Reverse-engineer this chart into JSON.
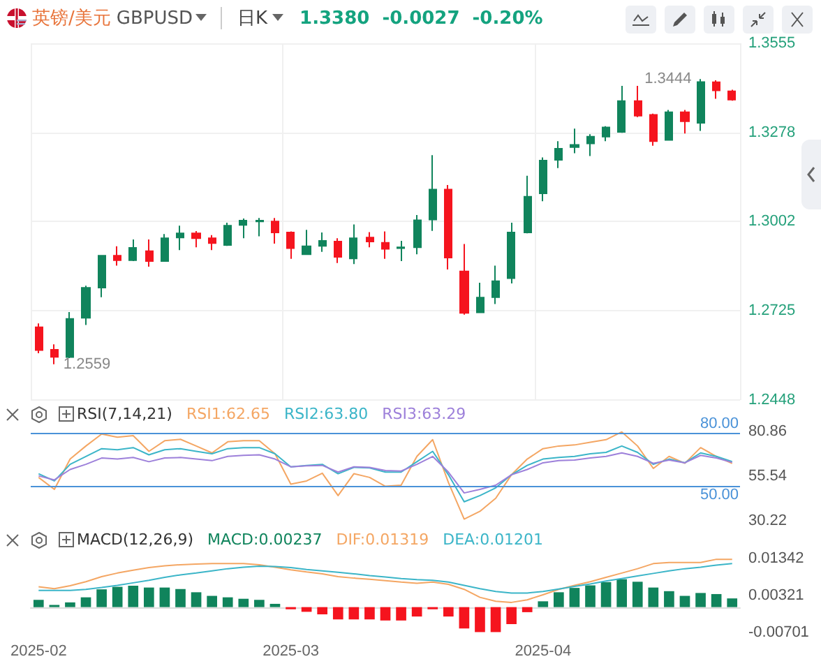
{
  "chart_data": [
    {
      "type": "candlestick",
      "title": "英镑/美元",
      "subtitle": "GBPUSD",
      "annotations": [
        "日K",
        "1.3380",
        "-0.0027",
        "-0.20%",
        "1.2559",
        "1.3444"
      ],
      "categories": [
        "2025-02",
        null,
        null,
        null,
        null,
        null,
        null,
        null,
        null,
        null,
        null,
        null,
        null,
        null,
        null,
        null,
        "2025-03",
        null,
        null,
        null,
        null,
        null,
        null,
        null,
        null,
        null,
        null,
        null,
        null,
        null,
        null,
        null,
        "2025-04",
        null,
        null,
        null,
        null,
        null,
        null,
        null,
        null,
        null,
        null,
        null,
        null
      ],
      "ohlc": [
        [
          1.2674,
          1.2686,
          1.2593,
          1.2603
        ],
        [
          1.2604,
          1.2621,
          1.2559,
          1.2582
        ],
        [
          1.2581,
          1.2721,
          1.2578,
          1.27
        ],
        [
          1.2703,
          1.2803,
          1.2681,
          1.2796
        ],
        [
          1.2797,
          1.2897,
          1.2767,
          1.2896
        ],
        [
          1.2896,
          1.2925,
          1.2865,
          1.2882
        ],
        [
          1.2882,
          1.2946,
          1.2879,
          1.292
        ],
        [
          1.291,
          1.2946,
          1.2862,
          1.2879
        ],
        [
          1.2879,
          1.2963,
          1.2877,
          1.295
        ],
        [
          1.2952,
          1.2989,
          1.2913,
          1.2965
        ],
        [
          1.2965,
          1.2972,
          1.2922,
          1.295
        ],
        [
          1.295,
          1.296,
          1.2913,
          1.2935
        ],
        [
          1.2929,
          1.2998,
          1.2926,
          1.2989
        ],
        [
          1.2991,
          1.3011,
          1.295,
          1.3005
        ],
        [
          1.3002,
          1.3013,
          1.2956,
          1.3005
        ],
        [
          1.3002,
          1.3013,
          1.2933,
          1.2968
        ],
        [
          1.2968,
          1.2971,
          1.2886,
          1.2919
        ],
        [
          1.29,
          1.2976,
          1.2898,
          1.2925
        ],
        [
          1.2926,
          1.2968,
          1.2908,
          1.2942
        ],
        [
          1.294,
          1.295,
          1.2873,
          1.2892
        ],
        [
          1.2887,
          1.2993,
          1.287,
          1.295
        ],
        [
          1.2952,
          1.2969,
          1.2922,
          1.294
        ],
        [
          1.2936,
          1.2971,
          1.2886,
          1.2917
        ],
        [
          1.2919,
          1.2942,
          1.2879,
          1.2922
        ],
        [
          1.2922,
          1.3022,
          1.29,
          1.3006
        ],
        [
          1.3008,
          1.3208,
          1.2973,
          1.3101
        ],
        [
          1.3101,
          1.3115,
          1.2853,
          1.289
        ],
        [
          1.2847,
          1.2932,
          1.2713,
          1.2718
        ],
        [
          1.272,
          1.2812,
          1.2718,
          1.2766
        ],
        [
          1.2767,
          1.2865,
          1.2746,
          1.2817
        ],
        [
          1.2826,
          1.2998,
          1.281,
          1.2968
        ],
        [
          1.2968,
          1.3144,
          1.2965,
          1.3079
        ],
        [
          1.3089,
          1.3201,
          1.3065,
          1.3191
        ],
        [
          1.3193,
          1.3251,
          1.3168,
          1.3228
        ],
        [
          1.3233,
          1.329,
          1.3214,
          1.324
        ],
        [
          1.3244,
          1.3273,
          1.3205,
          1.3265
        ],
        [
          1.3265,
          1.3298,
          1.3251,
          1.3294
        ],
        [
          1.328,
          1.3423,
          1.3277,
          1.3376
        ],
        [
          1.3376,
          1.3423,
          1.3326,
          1.333
        ],
        [
          1.3333,
          1.3337,
          1.3237,
          1.3251
        ],
        [
          1.3255,
          1.3348,
          1.3254,
          1.3341
        ],
        [
          1.3341,
          1.3348,
          1.3275,
          1.3313
        ],
        [
          1.3308,
          1.3444,
          1.3283,
          1.3435
        ],
        [
          1.3434,
          1.344,
          1.3383,
          1.3409
        ],
        [
          1.3406,
          1.3411,
          1.3377,
          1.338
        ]
      ],
      "colors": [
        "#f5141e",
        "#f5141e",
        "#10845c",
        "#10845c",
        "#10845c",
        "#f5141e",
        "#10845c",
        "#f5141e",
        "#10845c",
        "#10845c",
        "#f5141e",
        "#f5141e",
        "#10845c",
        "#10845c",
        "#10845c",
        "#f5141e",
        "#f5141e",
        "#10845c",
        "#10845c",
        "#f5141e",
        "#10845c",
        "#f5141e",
        "#f5141e",
        "#10845c",
        "#10845c",
        "#10845c",
        "#f5141e",
        "#f5141e",
        "#10845c",
        "#10845c",
        "#10845c",
        "#10845c",
        "#10845c",
        "#10845c",
        "#10845c",
        "#10845c",
        "#10845c",
        "#10845c",
        "#f5141e",
        "#f5141e",
        "#10845c",
        "#f5141e",
        "#10845c",
        "#f5141e",
        "#f5141e"
      ],
      "ylim": [
        1.2448,
        1.3555
      ],
      "yticks": [
        1.2448,
        1.2725,
        1.3002,
        1.3278,
        1.3555
      ],
      "grid": true,
      "tick_labels": "y"
    },
    {
      "type": "line",
      "title": "RSI(7,14,21)",
      "categories": [
        "2025-02",
        null,
        null,
        null,
        null,
        null,
        null,
        null,
        null,
        null,
        null,
        null,
        null,
        null,
        null,
        null,
        "2025-03",
        null,
        null,
        null,
        null,
        null,
        null,
        null,
        null,
        null,
        null,
        null,
        null,
        null,
        null,
        null,
        "2025-04",
        null,
        null,
        null,
        null,
        null,
        null,
        null,
        null,
        null,
        null,
        null,
        null
      ],
      "series": [
        {
          "name": "RSI1:62.65",
          "color": "#f4a663",
          "values": [
            54.8,
            48.0,
            65.2,
            72.6,
            79.4,
            77.6,
            78.5,
            69.6,
            75.6,
            76.4,
            72.6,
            68.7,
            75.0,
            75.6,
            75.6,
            68.2,
            51.0,
            52.8,
            57.2,
            44.5,
            56.9,
            54.8,
            49.8,
            50.4,
            66.7,
            76.2,
            51.9,
            31.2,
            35.6,
            43.0,
            56.3,
            65.2,
            71.1,
            72.6,
            73.2,
            74.7,
            76.2,
            80.6,
            72.6,
            59.9,
            66.7,
            62.8,
            71.7,
            66.7,
            62.7
          ]
        },
        {
          "name": "RSI2:63.80",
          "color": "#3bb5c8",
          "values": [
            56.9,
            52.8,
            62.2,
            66.7,
            71.1,
            70.5,
            71.7,
            67.6,
            70.5,
            71.1,
            69.6,
            68.2,
            71.1,
            71.7,
            71.7,
            68.2,
            60.8,
            61.6,
            62.2,
            56.9,
            60.5,
            60.2,
            57.8,
            57.8,
            63.7,
            69.6,
            56.3,
            41.0,
            44.5,
            48.9,
            56.3,
            61.6,
            65.2,
            66.1,
            66.7,
            68.2,
            69.0,
            72.6,
            69.0,
            62.2,
            65.2,
            63.1,
            68.7,
            66.7,
            63.8
          ]
        },
        {
          "name": "RSI3:63.29",
          "color": "#9d80da",
          "values": [
            55.7,
            53.4,
            59.3,
            62.2,
            65.8,
            65.2,
            66.1,
            63.7,
            65.8,
            66.1,
            65.2,
            64.3,
            66.7,
            67.3,
            67.6,
            65.2,
            60.8,
            61.4,
            61.6,
            57.8,
            60.8,
            60.5,
            58.7,
            58.4,
            62.2,
            66.7,
            57.8,
            46.0,
            48.0,
            50.4,
            56.3,
            59.3,
            63.1,
            64.3,
            64.6,
            65.8,
            66.7,
            68.7,
            66.7,
            62.8,
            64.6,
            63.1,
            67.3,
            65.8,
            63.3
          ]
        }
      ],
      "ylim": [
        30.22,
        80.86
      ],
      "yticks": [
        30.22,
        55.54,
        80.86
      ],
      "ref_lines": [
        {
          "axis": "y",
          "value": 80,
          "label": "80.00",
          "color": "#4a92d8"
        },
        {
          "axis": "y",
          "value": 50,
          "label": "50.00",
          "color": "#4a92d8"
        }
      ],
      "legend": "top",
      "marker": "none",
      "tick_labels": "y"
    },
    {
      "type": "bar",
      "title": "MACD(12,26,9)",
      "categories": [
        "2025-02",
        null,
        null,
        null,
        null,
        null,
        null,
        null,
        null,
        null,
        null,
        null,
        null,
        null,
        null,
        null,
        "2025-03",
        null,
        null,
        null,
        null,
        null,
        null,
        null,
        null,
        null,
        null,
        null,
        null,
        null,
        null,
        null,
        "2025-04",
        null,
        null,
        null,
        null,
        null,
        null,
        null,
        null,
        null,
        null,
        null,
        null
      ],
      "series": [
        {
          "name": "MACD:0.00237",
          "type": "bar",
          "colors": [
            "#10845c",
            "#10845c",
            "#10845c",
            "#10845c",
            "#10845c",
            "#10845c",
            "#10845c",
            "#10845c",
            "#10845c",
            "#10845c",
            "#10845c",
            "#10845c",
            "#10845c",
            "#10845c",
            "#10845c",
            "#10845c",
            "#f5141e",
            "#f5141e",
            "#f5141e",
            "#f5141e",
            "#f5141e",
            "#f5141e",
            "#f5141e",
            "#f5141e",
            "#f5141e",
            "#f5141e",
            "#f5141e",
            "#f5141e",
            "#f5141e",
            "#f5141e",
            "#f5141e",
            "#f5141e",
            "#10845c",
            "#10845c",
            "#10845c",
            "#10845c",
            "#10845c",
            "#10845c",
            "#10845c",
            "#10845c",
            "#10845c",
            "#10845c",
            "#10845c",
            "#10845c",
            "#10845c"
          ],
          "values": [
            0.002,
            0.0006,
            0.0013,
            0.0027,
            0.0049,
            0.0056,
            0.0059,
            0.0054,
            0.0054,
            0.005,
            0.0041,
            0.0031,
            0.0027,
            0.0023,
            0.002,
            0.0009,
            -0.0006,
            -0.0013,
            -0.002,
            -0.0034,
            -0.0034,
            -0.0034,
            -0.0037,
            -0.0037,
            -0.0026,
            -0.0006,
            -0.0026,
            -0.0059,
            -0.0069,
            -0.0069,
            -0.0047,
            -0.0014,
            0.0016,
            0.0041,
            0.0053,
            0.006,
            0.0069,
            0.0077,
            0.007,
            0.0054,
            0.0044,
            0.0031,
            0.0039,
            0.0036,
            0.0024
          ]
        },
        {
          "name": "DIF:0.01319",
          "type": "line",
          "color": "#f4a663",
          "values": [
            0.0056,
            0.0051,
            0.0059,
            0.007,
            0.0084,
            0.0094,
            0.0102,
            0.0109,
            0.0114,
            0.0117,
            0.0119,
            0.012,
            0.012,
            0.012,
            0.0117,
            0.011,
            0.0103,
            0.0097,
            0.0092,
            0.0084,
            0.008,
            0.0077,
            0.0073,
            0.0069,
            0.0066,
            0.0069,
            0.0063,
            0.0049,
            0.0027,
            0.0016,
            0.0013,
            0.002,
            0.0034,
            0.0049,
            0.006,
            0.007,
            0.0082,
            0.0094,
            0.0106,
            0.012,
            0.0123,
            0.0123,
            0.0123,
            0.0132,
            0.0132
          ]
        },
        {
          "name": "DEA:0.01201",
          "type": "line",
          "color": "#3bb5c8",
          "values": [
            0.0046,
            0.0046,
            0.0046,
            0.0049,
            0.0054,
            0.006,
            0.0067,
            0.0074,
            0.0082,
            0.0089,
            0.0094,
            0.01,
            0.0106,
            0.011,
            0.0113,
            0.0112,
            0.0109,
            0.0104,
            0.01,
            0.0096,
            0.0092,
            0.0087,
            0.0083,
            0.0079,
            0.0076,
            0.0074,
            0.0069,
            0.006,
            0.0051,
            0.0043,
            0.0039,
            0.0039,
            0.0043,
            0.005,
            0.0057,
            0.0064,
            0.0072,
            0.0079,
            0.0086,
            0.0093,
            0.01,
            0.0106,
            0.011,
            0.0116,
            0.012
          ]
        }
      ],
      "ylim": [
        -0.00701,
        0.01342
      ],
      "yticks": [
        -0.00701,
        0.00321,
        0.01342
      ],
      "legend": "top",
      "marker": "none"
    }
  ]
}
